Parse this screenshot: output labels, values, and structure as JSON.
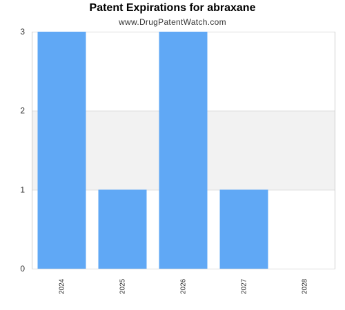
{
  "chart_data": {
    "type": "bar",
    "title": "Patent Expirations for abraxane",
    "subtitle": "www.DrugPatentWatch.com",
    "xlabel": "",
    "ylabel": "",
    "categories": [
      "2024",
      "2025",
      "2026",
      "2027",
      "2028"
    ],
    "values": [
      3,
      1,
      3,
      1,
      0
    ],
    "ylim": [
      0,
      3
    ],
    "yticks": [
      0,
      1,
      2,
      3
    ],
    "grid": true,
    "legend": "none",
    "colors": {
      "bar": "#60a8f5",
      "band": "#f2f2f2",
      "gridline": "#dddddd",
      "axis": "#cccccc",
      "text": "#333333"
    }
  }
}
